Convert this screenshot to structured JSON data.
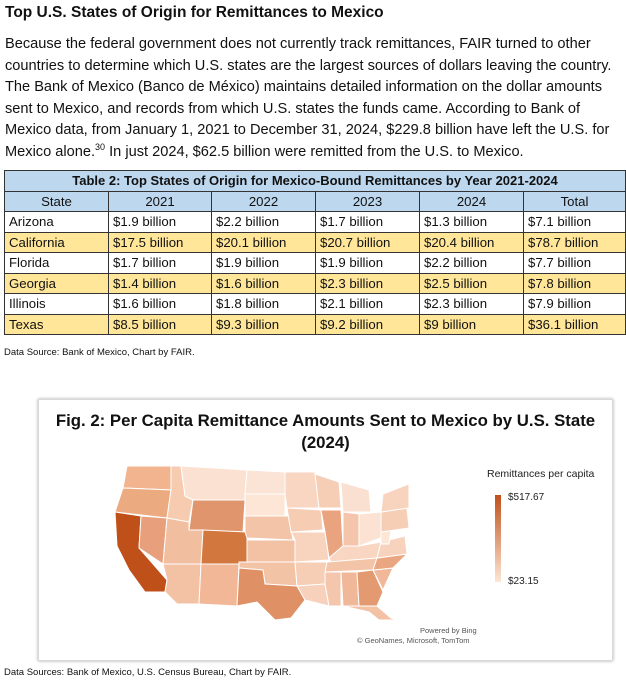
{
  "section": {
    "heading": "Top U.S. States of Origin for Remittances to Mexico",
    "para_before": "Because the federal government does not currently track remittances, FAIR turned to other countries to determine which U.S. states are the largest sources of dollars leaving the country. The Bank of Mexico (Banco de México) maintains detailed information on the dollar amounts sent to Mexico, and records from which U.S. states the funds came. According to Bank of Mexico data, from January 1, 2021 to December 31, 2024, $229.8 billion have left the U.S. for Mexico alone.",
    "footnote": "30",
    "para_after": " In just 2024, $62.5 billion were remitted from the U.S. to Mexico."
  },
  "table": {
    "caption": "Table 2: Top States of Origin for Mexico-Bound Remittances by Year 2021-2024",
    "headers": [
      "State",
      "2021",
      "2022",
      "2023",
      "2024",
      "Total"
    ],
    "rows": [
      [
        "Arizona",
        "$1.9 billion",
        "$2.2 billion",
        "$1.7 billion",
        "$1.3 billion",
        "$7.1 billion"
      ],
      [
        "California",
        "$17.5 billion",
        "$20.1 billion",
        "$20.7 billion",
        "$20.4 billion",
        "$78.7 billion"
      ],
      [
        "Florida",
        "$1.7 billion",
        "$1.9 billion",
        "$1.9 billion",
        "$2.2 billion",
        "$7.7 billion"
      ],
      [
        "Georgia",
        "$1.4 billion",
        "$1.6 billion",
        "$2.3 billion",
        "$2.5 billion",
        "$7.8 billion"
      ],
      [
        "Illinois",
        "$1.6 billion",
        "$1.8 billion",
        "$2.1 billion",
        "$2.3 billion",
        "$7.9 billion"
      ],
      [
        "Texas",
        "$8.5 billion",
        "$9.3 billion",
        "$9.2 billion",
        "$9 billion",
        "$36.1 billion"
      ]
    ],
    "source": "Data Source: Bank of Mexico, Chart by FAIR."
  },
  "figure": {
    "title_line1": "Fig. 2: Per Capita Remittance Amounts Sent to Mexico by U.S. State",
    "title_line2": "(2024)",
    "legend_title": "Remittances per capita",
    "legend_max": "$517.67",
    "legend_min": "$23.15",
    "powered_by": "Powered by Bing",
    "attribution": "© GeoNames, Microsoft, TomTom",
    "source": "Data Sources: Bank of Mexico, U.S. Census Bureau, Chart by FAIR.",
    "colors": {
      "high": "#c0501a",
      "low": "#fde6d5"
    }
  }
}
